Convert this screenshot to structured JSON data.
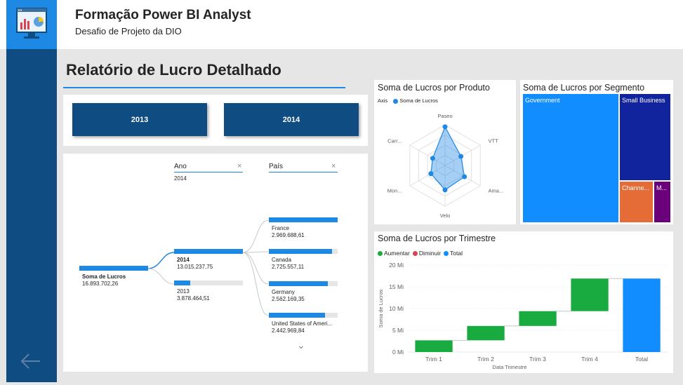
{
  "header": {
    "title": "Formação Power BI Analyst",
    "subtitle": "Desafio de Projeto da DIO"
  },
  "report": {
    "title": "Relatório de Lucro Detalhado"
  },
  "year_buttons": [
    "2013",
    "2014"
  ],
  "decomp_tree": {
    "root": {
      "label": "Soma de Lucros",
      "value": "16.893.702,26"
    },
    "levels": [
      {
        "header": "Ano",
        "filter": "2014"
      },
      {
        "header": "País",
        "filter": ""
      }
    ],
    "years": [
      {
        "label": "2014",
        "value": "13.015.237,75",
        "fraction": 0.77
      },
      {
        "label": "2013",
        "value": "3.878.464,51",
        "fraction": 0.23
      }
    ],
    "countries": [
      {
        "label": "France",
        "value": "2.969.688,61",
        "fraction": 1.0
      },
      {
        "label": "Canada",
        "value": "2.725.557,11",
        "fraction": 0.92
      },
      {
        "label": "Germany",
        "value": "2.562.169,35",
        "fraction": 0.86
      },
      {
        "label": "United States of Ameri...",
        "value": "2.442.969,84",
        "fraction": 0.82
      }
    ],
    "close_glyph": "×",
    "more_glyph": "⌄"
  },
  "radar": {
    "title": "Soma de Lucros por Produto",
    "legend_axis": "Axis",
    "legend_series": "Soma de Lucros",
    "color": "#1e88e5",
    "chart_data": {
      "type": "radar",
      "categories": [
        "Paseo",
        "VTT",
        "Ama...",
        "Velo",
        "Mon...",
        "Carr..."
      ],
      "values": [
        0.95,
        0.45,
        0.55,
        0.6,
        0.4,
        0.35
      ]
    }
  },
  "treemap": {
    "title": "Soma de Lucros por Segmento",
    "chart_data": {
      "type": "treemap",
      "items": [
        {
          "label": "Government",
          "color": "#118dff"
        },
        {
          "label": "Small Business",
          "color": "#12239e"
        },
        {
          "label": "Channe...",
          "color": "#e66c37"
        },
        {
          "label": "M...",
          "color": "#6b007b"
        }
      ]
    }
  },
  "waterfall": {
    "title": "Soma de Lucros por Trimestre",
    "legend": [
      {
        "label": "Aumentar",
        "color": "#1aab40"
      },
      {
        "label": "Diminuir",
        "color": "#d64550"
      },
      {
        "label": "Total",
        "color": "#118dff"
      }
    ],
    "chart_data": {
      "type": "waterfall",
      "xlabel": "Data Trimestre",
      "ylabel": "Soma de Lucros",
      "categories": [
        "Trim 1",
        "Trim 2",
        "Trim 3",
        "Trim 4",
        "Total"
      ],
      "values": [
        2.7,
        3.3,
        3.4,
        7.5,
        16.9
      ],
      "ylim": [
        0,
        20
      ],
      "yticks": [
        0,
        5,
        10,
        15,
        20
      ],
      "ytick_labels": [
        "0 Mi",
        "5 Mi",
        "10 Mi",
        "15 Mi",
        "20 Mi"
      ],
      "inc_color": "#1aab40",
      "total_color": "#118dff"
    }
  }
}
